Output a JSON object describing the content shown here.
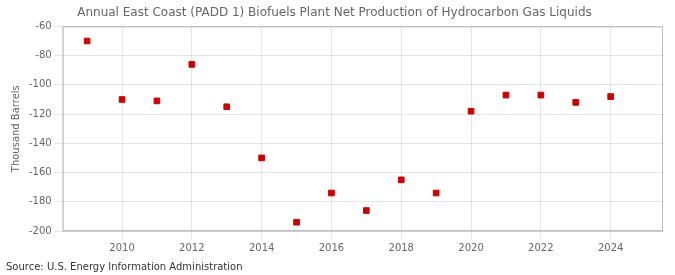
{
  "chart_data": {
    "type": "scatter",
    "title": "Annual East Coast (PADD 1) Biofuels Plant Net Production of Hydrocarbon Gas Liquids",
    "ylabel": "Thousand Barrels",
    "annotation": "Source: U.S. Energy Information Administration",
    "x": [
      2009,
      2010,
      2011,
      2012,
      2013,
      2014,
      2015,
      2016,
      2017,
      2018,
      2019,
      2020,
      2021,
      2022,
      2023,
      2024
    ],
    "values": [
      -70,
      -110,
      -111,
      -86,
      -115,
      -150,
      -194,
      -174,
      -186,
      -165,
      -174,
      -118,
      -107,
      -107,
      -112,
      -108
    ],
    "color": "#cc0000",
    "marker": "square",
    "xlim": [
      2008.3,
      2025.5
    ],
    "xticks": [
      2010,
      2012,
      2014,
      2016,
      2018,
      2020,
      2022,
      2024
    ],
    "ylim": [
      -200,
      -60
    ],
    "yticks": [
      -200,
      -180,
      -160,
      -140,
      -120,
      -100,
      -80,
      -60
    ],
    "grid": true
  }
}
